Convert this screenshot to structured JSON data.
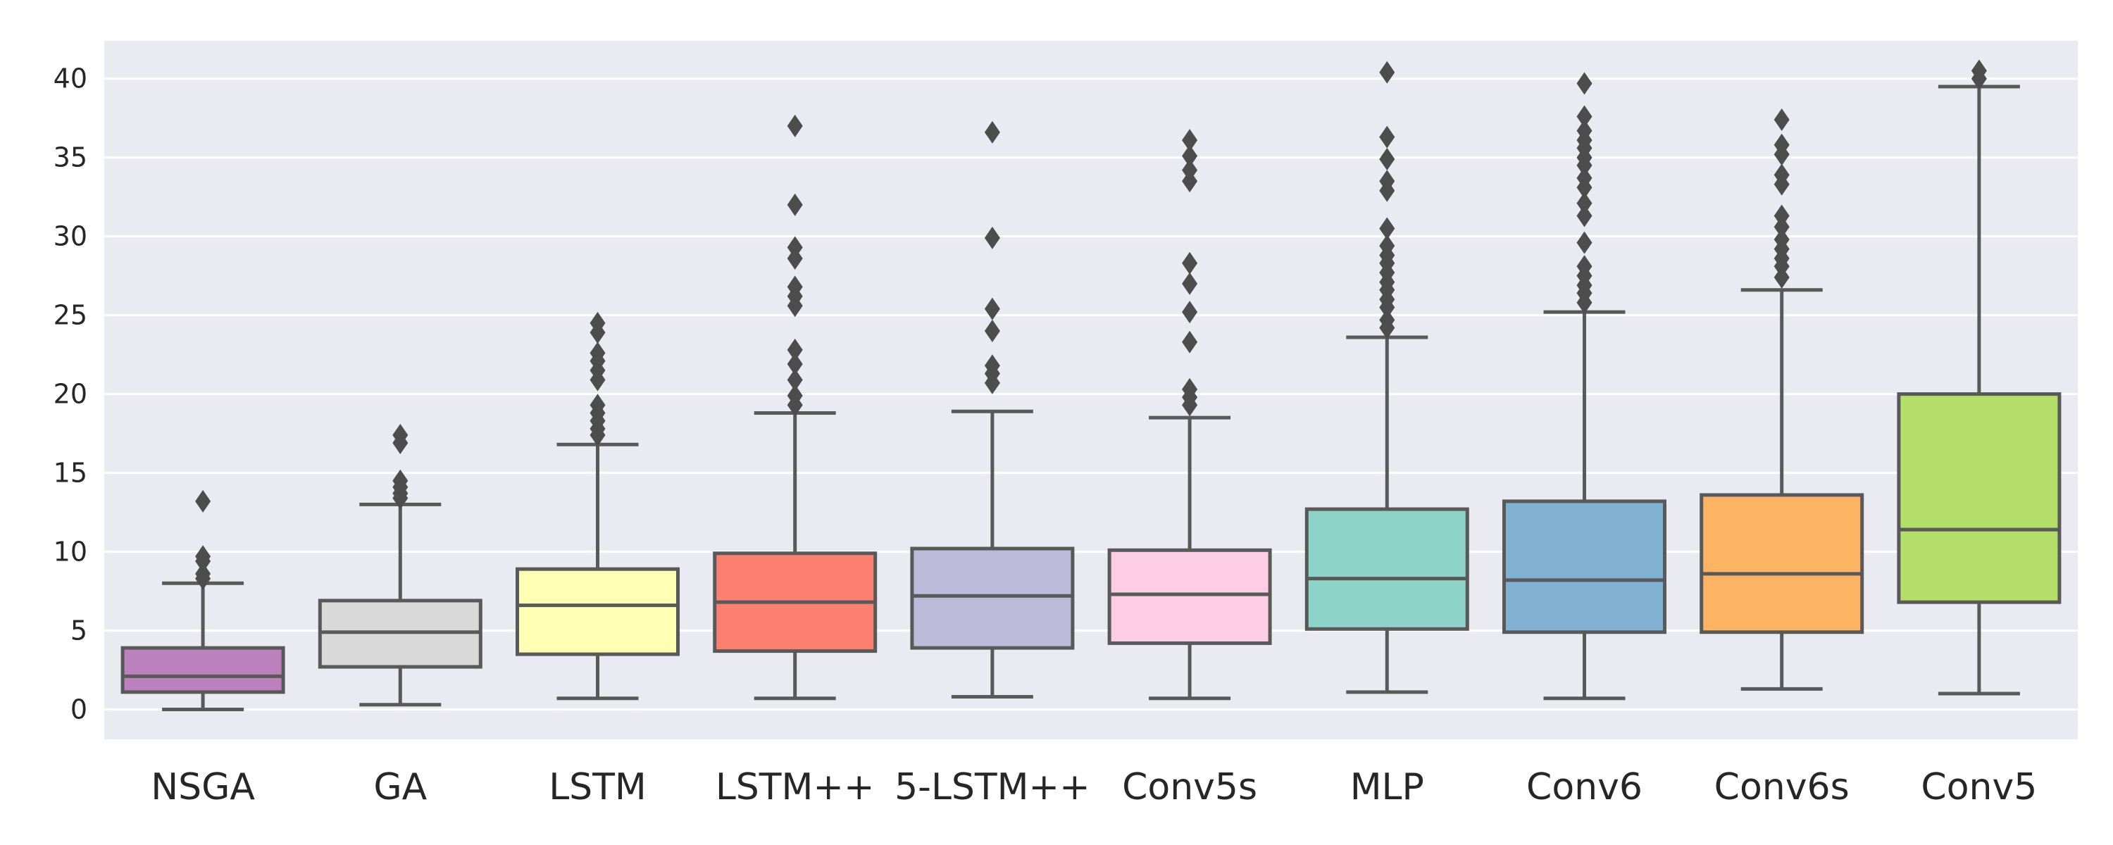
{
  "chart_data": {
    "type": "box",
    "title": "",
    "xlabel": "",
    "ylabel": "",
    "ylim": [
      -1.9,
      42.4
    ],
    "yticks": [
      0,
      5,
      10,
      15,
      20,
      25,
      30,
      35,
      40
    ],
    "grid": true,
    "legend": "none",
    "categories": [
      "NSGA",
      "GA",
      "LSTM",
      "LSTM++",
      "5-LSTM++",
      "Conv5s",
      "MLP",
      "Conv6",
      "Conv6s",
      "Conv5"
    ],
    "colors": [
      "#bc80bd",
      "#d9d9d9",
      "#ffffb3",
      "#fb8072",
      "#bebada",
      "#fccde5",
      "#8dd3c7",
      "#80b1d3",
      "#fdb462",
      "#b3de69"
    ],
    "boxes": [
      {
        "whisker_low": 0.0,
        "q1": 1.1,
        "median": 2.1,
        "q3": 3.9,
        "whisker_high": 8.0,
        "outliers": [
          8.3,
          8.6,
          9.4,
          9.7,
          13.2
        ]
      },
      {
        "whisker_low": 0.3,
        "q1": 2.7,
        "median": 4.9,
        "q3": 6.9,
        "whisker_high": 13.0,
        "outliers": [
          13.4,
          13.7,
          14.1,
          14.5,
          16.9,
          17.4
        ]
      },
      {
        "whisker_low": 0.7,
        "q1": 3.5,
        "median": 6.6,
        "q3": 8.9,
        "whisker_high": 16.8,
        "outliers": [
          17.4,
          17.8,
          18.3,
          18.8,
          19.3,
          20.9,
          21.5,
          22.1,
          22.6,
          23.9,
          24.5
        ]
      },
      {
        "whisker_low": 0.7,
        "q1": 3.7,
        "median": 6.8,
        "q3": 9.9,
        "whisker_high": 18.8,
        "outliers": [
          19.3,
          19.9,
          20.9,
          21.9,
          22.8,
          25.6,
          26.2,
          26.8,
          28.6,
          29.3,
          32.0,
          37.0
        ]
      },
      {
        "whisker_low": 0.8,
        "q1": 3.9,
        "median": 7.2,
        "q3": 10.2,
        "whisker_high": 18.9,
        "outliers": [
          20.7,
          21.3,
          21.8,
          24.0,
          25.4,
          29.9,
          36.6
        ]
      },
      {
        "whisker_low": 0.7,
        "q1": 4.2,
        "median": 7.3,
        "q3": 10.1,
        "whisker_high": 18.5,
        "outliers": [
          19.3,
          19.8,
          20.3,
          23.3,
          25.2,
          27.0,
          28.3,
          33.5,
          34.2,
          35.1,
          36.1
        ]
      },
      {
        "whisker_low": 1.1,
        "q1": 5.1,
        "median": 8.3,
        "q3": 12.7,
        "whisker_high": 23.6,
        "outliers": [
          24.2,
          24.7,
          25.5,
          26.0,
          26.6,
          27.1,
          27.7,
          28.3,
          28.8,
          29.4,
          30.5,
          32.9,
          33.5,
          34.9,
          36.3,
          40.4
        ]
      },
      {
        "whisker_low": 0.7,
        "q1": 4.9,
        "median": 8.2,
        "q3": 13.2,
        "whisker_high": 25.2,
        "outliers": [
          25.8,
          26.4,
          26.9,
          27.5,
          28.1,
          29.6,
          31.3,
          32.1,
          33.1,
          33.7,
          34.5,
          35.0,
          35.6,
          36.1,
          36.7,
          37.6,
          39.7
        ]
      },
      {
        "whisker_low": 1.3,
        "q1": 4.9,
        "median": 8.6,
        "q3": 13.6,
        "whisker_high": 26.6,
        "outliers": [
          27.4,
          28.1,
          28.6,
          29.2,
          29.8,
          30.6,
          31.3,
          33.3,
          33.9,
          35.2,
          35.8,
          37.4
        ]
      },
      {
        "whisker_low": 1.0,
        "q1": 6.8,
        "median": 11.4,
        "q3": 20.0,
        "whisker_high": 39.5,
        "outliers": [
          40.0,
          40.5
        ]
      }
    ]
  }
}
